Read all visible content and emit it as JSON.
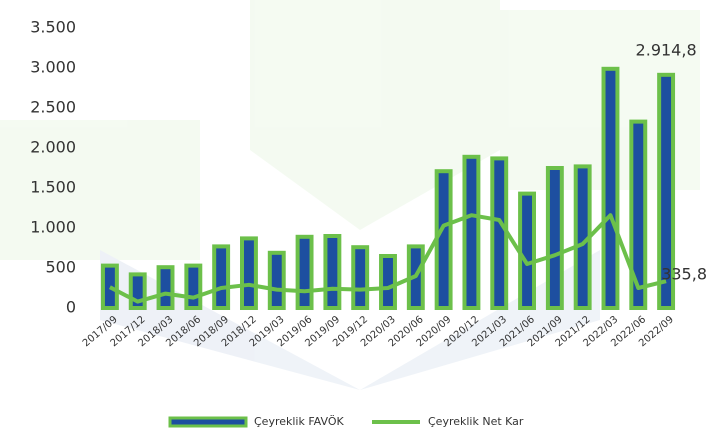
{
  "chart_data": {
    "type": "bar_line",
    "categories": [
      "2017/09",
      "2017/12",
      "2018/03",
      "2018/06",
      "2018/09",
      "2018/12",
      "2019/03",
      "2019/06",
      "2019/09",
      "2019/12",
      "2020/03",
      "2020/06",
      "2020/09",
      "2020/12",
      "2021/03",
      "2021/06",
      "2021/09",
      "2021/12",
      "2022/03",
      "2022/06",
      "2022/09"
    ],
    "series": [
      {
        "name": "Çeyreklik FAVÖK",
        "type": "bar",
        "color": "#1d4fa0",
        "edge_color": "#6cc04a",
        "values": [
          530,
          420,
          510,
          530,
          770,
          870,
          690,
          890,
          900,
          760,
          650,
          770,
          1710,
          1890,
          1870,
          1430,
          1750,
          1770,
          2990,
          2330,
          2914.8
        ],
        "value_labels": [
          null,
          null,
          null,
          null,
          null,
          null,
          null,
          null,
          null,
          null,
          null,
          null,
          null,
          null,
          null,
          null,
          null,
          null,
          null,
          null,
          "2.914,8"
        ]
      },
      {
        "name": "Çeyreklik Net Kar",
        "type": "line",
        "color": "#6cc04a",
        "values": [
          260,
          80,
          180,
          130,
          250,
          290,
          230,
          210,
          240,
          230,
          250,
          400,
          1030,
          1160,
          1100,
          550,
          660,
          800,
          1160,
          250,
          335.8
        ],
        "value_labels": [
          null,
          null,
          null,
          null,
          null,
          null,
          null,
          null,
          null,
          null,
          null,
          null,
          null,
          null,
          null,
          null,
          null,
          null,
          null,
          null,
          "335,8"
        ]
      }
    ],
    "ylim": [
      0,
      3500
    ],
    "yticks": [
      0,
      {
        "value": 500,
        "label": "500"
      },
      {
        "value": 1000,
        "label": "1.000"
      },
      {
        "value": 1500,
        "label": "1.500"
      },
      {
        "value": 2000,
        "label": "2.000"
      },
      {
        "value": 2500,
        "label": "2.500"
      },
      {
        "value": 3000,
        "label": "3.000"
      },
      {
        "value": 3500,
        "label": "3.500"
      }
    ],
    "grid": false
  }
}
